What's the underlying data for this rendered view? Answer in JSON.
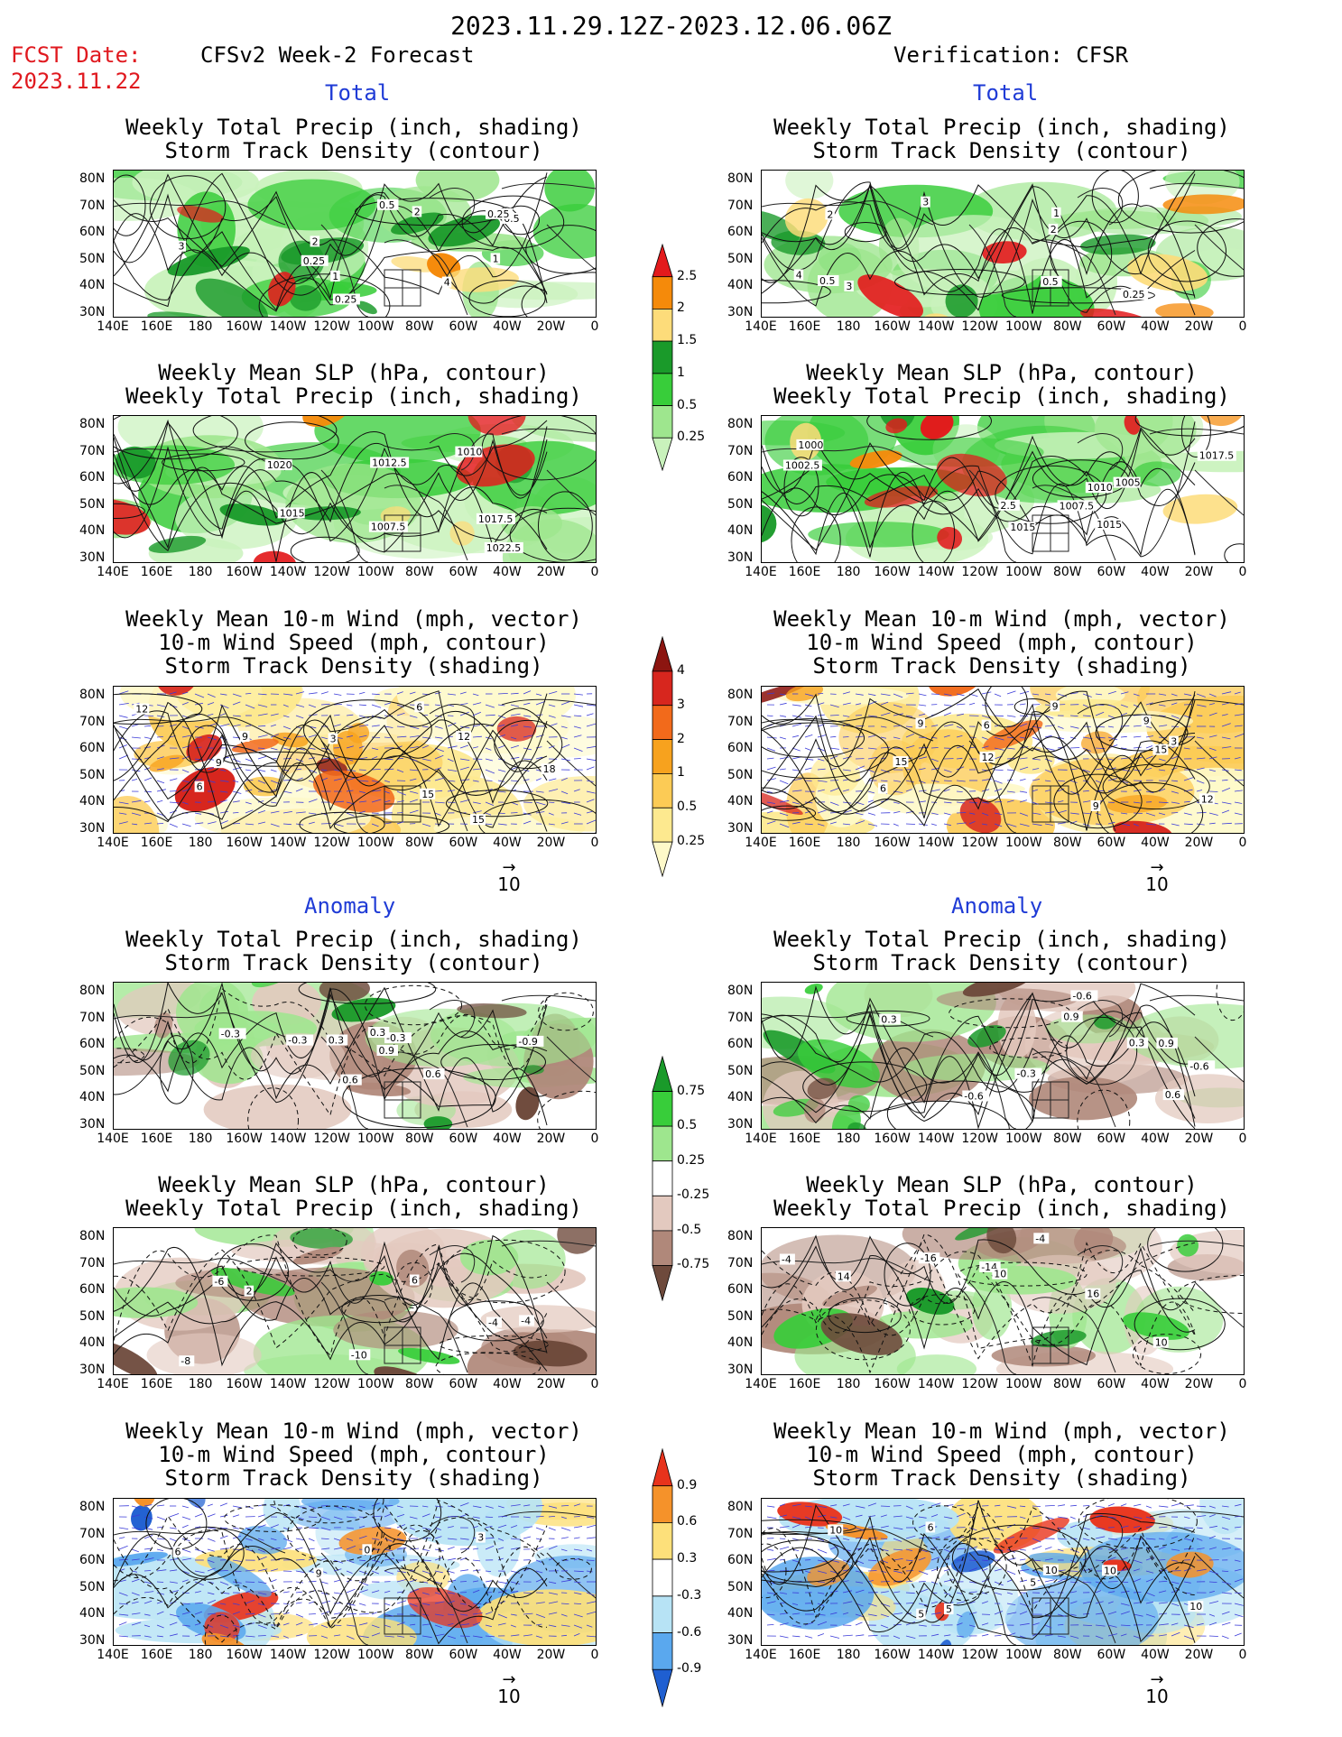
{
  "header": {
    "date_range": "2023.11.29.12Z-2023.12.06.06Z",
    "fcst_label": "FCST Date:",
    "fcst_date": "2023.11.22",
    "left_title": "CFSv2 Week-2 Forecast",
    "right_title": "Verification: CFSR"
  },
  "sections": {
    "total": "Total",
    "anomaly": "Anomaly"
  },
  "panel_titles": {
    "precip_storm": [
      "Weekly Total Precip (inch, shading)",
      "Storm Track Density (contour)"
    ],
    "slp_precip": [
      "Weekly Mean SLP (hPa, contour)",
      "Weekly Total Precip (inch, shading)"
    ],
    "wind_storm": [
      "Weekly Mean 10-m Wind (mph, vector)",
      "10-m Wind Speed (mph, contour)",
      "Storm Track Density (shading)"
    ]
  },
  "axes": {
    "lat_ticks": [
      "80N",
      "70N",
      "60N",
      "50N",
      "40N",
      "30N"
    ],
    "lon_ticks": [
      "140E",
      "160E",
      "180",
      "160W",
      "140W",
      "120W",
      "100W",
      "80W",
      "60W",
      "40W",
      "20W",
      "0"
    ]
  },
  "vector_reference": "10",
  "colorbars": {
    "precip_total": {
      "labels": [
        "2.5",
        "2",
        "1.5",
        "1",
        "0.5",
        "0.25"
      ],
      "colors": [
        "#e31a1c",
        "#f58a0a",
        "#fddc7a",
        "#1a9a2a",
        "#38cd3a",
        "#9ee68e",
        "#c9f2bc"
      ]
    },
    "storm_total": {
      "labels": [
        "4",
        "3",
        "2",
        "1",
        "0.5",
        "0.25"
      ],
      "colors": [
        "#8c1510",
        "#d7261e",
        "#f26a1b",
        "#f7a21e",
        "#fccb55",
        "#fde98f",
        "#fef9c9"
      ]
    },
    "precip_anom": {
      "labels": [
        "0.75",
        "0.5",
        "0.25",
        "-0.25",
        "-0.5",
        "-0.75"
      ],
      "colors": [
        "#1a9a2a",
        "#38cd3a",
        "#9ee68e",
        "#ffffff",
        "#e3c9bf",
        "#b0887a",
        "#6e4a3c"
      ]
    },
    "storm_anom": {
      "labels": [
        "0.9",
        "0.6",
        "0.3",
        "-0.3",
        "-0.6",
        "-0.9"
      ],
      "colors": [
        "#e8331c",
        "#f5922a",
        "#fde07a",
        "#ffffff",
        "#b7e3f5",
        "#5aa8ee",
        "#1f5fd1"
      ]
    }
  },
  "contour_labels": {
    "p1": [
      "0.5",
      "0.25",
      "1",
      "4",
      "3",
      "2",
      "1",
      "0.25",
      "0.5",
      "2",
      "0.25"
    ],
    "p2": [
      "0.5",
      "0.5",
      "0.25",
      "4",
      "3",
      "2",
      "1",
      "3",
      "2"
    ],
    "p3": [
      "1020",
      "1022.5",
      "1010",
      "1015",
      "1007.5",
      "1012.5",
      "1017.5"
    ],
    "p4": [
      "1015",
      "1000",
      "1010",
      "1007.5",
      "1005",
      "1002.5",
      "1017.5",
      "2.5",
      "1015"
    ],
    "p5": [
      "12",
      "9",
      "15",
      "18",
      "12",
      "3",
      "6",
      "9",
      "15",
      "6"
    ],
    "p6": [
      "12",
      "12",
      "9",
      "15",
      "6",
      "3",
      "9",
      "15",
      "9",
      "6",
      "9"
    ],
    "p7": [
      "-0.3",
      "0.6",
      "-0.3",
      "0.9",
      "0.3",
      "-0.3",
      "0.6",
      "0.3",
      "-0.9"
    ],
    "p8": [
      "-0.6",
      "0.6",
      "-0.3",
      "0.9",
      "-0.6",
      "0.3",
      "0.9",
      "0.3",
      "-0.6"
    ],
    "p9": [
      "6",
      "-8",
      "-10",
      "-6",
      "-4",
      "2",
      "-4"
    ],
    "p10": [
      "10",
      "-16",
      "-14",
      "10",
      "14",
      "16",
      "-4",
      "-4"
    ],
    "p11": [
      "6",
      "0",
      "9",
      "3"
    ],
    "p12": [
      "5",
      "10",
      "5",
      "10",
      "5",
      "10",
      "6",
      "10"
    ]
  }
}
